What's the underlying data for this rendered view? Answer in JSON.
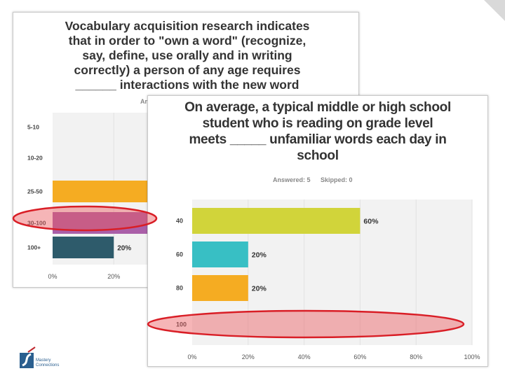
{
  "back_card": {
    "title": "Vocabulary acquisition research indicates\nthat in order to \"own a word\" (recognize,\nsay, define, use orally and in writing\ncorrectly) a person of any age requires\n______ interactions with the new word",
    "answered_partial": "An"
  },
  "front_card": {
    "title": "On average, a typical middle or high school\nstudent who is reading on grade level\nmeets _____ unfamiliar words each day in\nschool",
    "answered": "Answered: 5",
    "skipped": "Skipped: 0"
  },
  "logo": {
    "line1": "Mastery",
    "line2": "Connections"
  },
  "chart_data": [
    {
      "type": "bar",
      "orientation": "horizontal",
      "categories": [
        "5-10",
        "10-20",
        "25-50",
        "30-100",
        "100+"
      ],
      "values": [
        0,
        0,
        null,
        null,
        20
      ],
      "data_labels": [
        "",
        "",
        "",
        "",
        "20%"
      ],
      "colors": [
        "#d1d43a",
        "#38bfc4",
        "#f5ac22",
        "#aa5fa8",
        "#2e5b6b"
      ],
      "xlim": [
        0,
        100
      ],
      "x_ticks_visible": [
        "0%",
        "20%"
      ],
      "highlighted_category": "30-100"
    },
    {
      "type": "bar",
      "orientation": "horizontal",
      "categories": [
        "40",
        "60",
        "80",
        "100"
      ],
      "values": [
        60,
        20,
        20,
        0
      ],
      "data_labels": [
        "60%",
        "20%",
        "20%",
        ""
      ],
      "colors": [
        "#d1d43a",
        "#38bfc4",
        "#f5ac22",
        "#aa5fa8"
      ],
      "xlim": [
        0,
        100
      ],
      "x_ticks": [
        "0%",
        "20%",
        "40%",
        "60%",
        "80%",
        "100%"
      ],
      "highlighted_category": "100"
    }
  ]
}
